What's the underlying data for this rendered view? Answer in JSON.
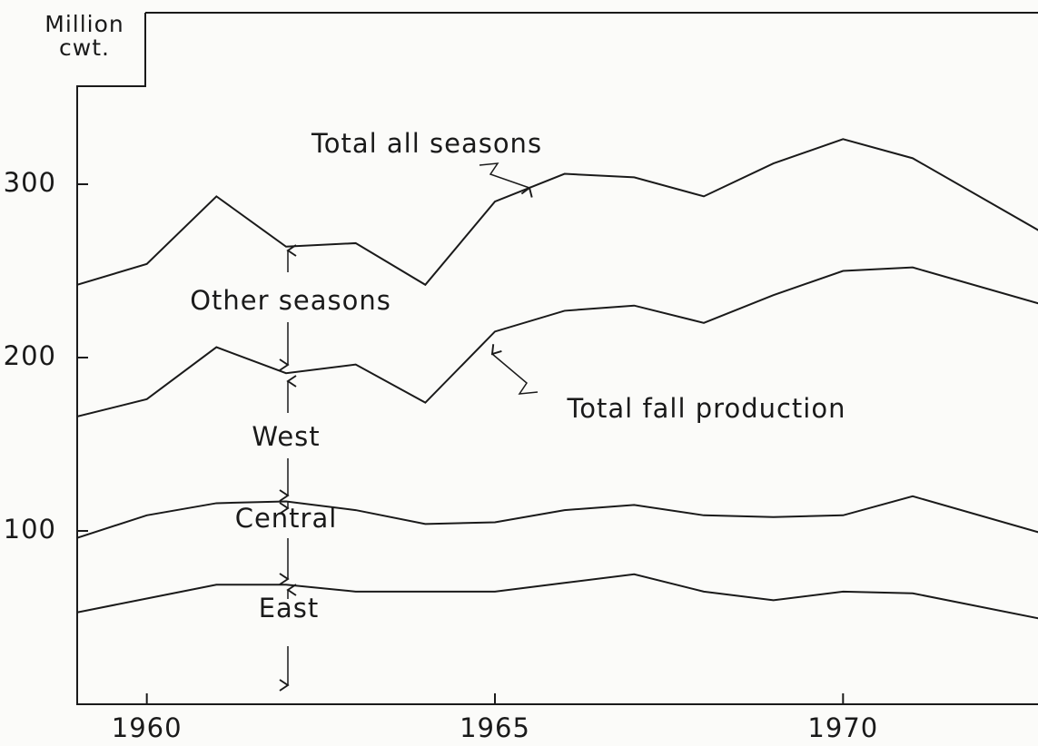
{
  "chart_data": {
    "type": "stacked-line",
    "ylabel": "Million cwt.",
    "x": [
      1959,
      1960,
      1961,
      1962,
      1963,
      1964,
      1965,
      1966,
      1967,
      1968,
      1969,
      1970,
      1971,
      1973
    ],
    "series": [
      {
        "name": "East",
        "color": "#1a1a1a",
        "values": [
          53,
          61,
          69,
          69,
          65,
          65,
          65,
          70,
          75,
          65,
          60,
          65,
          64,
          48
        ]
      },
      {
        "name": "Central",
        "color": "#1a1a1a",
        "values": [
          43,
          48,
          47,
          48,
          47,
          39,
          40,
          42,
          40,
          44,
          48,
          44,
          56,
          49
        ]
      },
      {
        "name": "West",
        "color": "#1a1a1a",
        "values": [
          70,
          67,
          90,
          74,
          84,
          70,
          110,
          115,
          115,
          111,
          128,
          141,
          132,
          132
        ]
      },
      {
        "name": "Other seasons",
        "color": "#1a1a1a",
        "values": [
          76,
          78,
          87,
          73,
          70,
          68,
          75,
          79,
          74,
          73,
          76,
          76,
          63,
          40
        ]
      }
    ],
    "annotations": [
      "Total all seasons",
      "Total fall production"
    ],
    "xlim": [
      1959,
      1972.8
    ],
    "xticks": [
      1960,
      1965,
      1970
    ],
    "ylim": [
      0,
      400
    ],
    "yticks": [
      100,
      200,
      300
    ]
  }
}
